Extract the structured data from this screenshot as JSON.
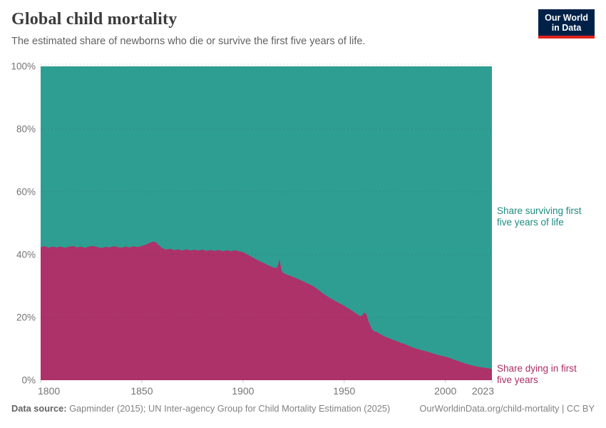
{
  "header": {
    "title": "Global child mortality",
    "subtitle": "The estimated share of newborns who die or survive the first five years of life.",
    "logo": {
      "line1": "Our World",
      "line2": "in Data",
      "bg_color": "#002147",
      "bar_color": "#e0231c"
    }
  },
  "chart_data": {
    "type": "area",
    "stacked": true,
    "title": "Global child mortality",
    "subtitle": "The estimated share of newborns who die or survive the first five years of life.",
    "xlim": [
      1800,
      2023
    ],
    "ylim": [
      0,
      100
    ],
    "grid": true,
    "x_ticks": [
      1800,
      1850,
      1900,
      1950,
      2000,
      2023
    ],
    "y_ticks": [
      0,
      20,
      40,
      60,
      80,
      100
    ],
    "y_tick_suffix": "%",
    "axis_text_color": "#757575",
    "series": [
      {
        "name": "Share surviving first five years of life",
        "label_lines": [
          "Share surviving first",
          "five years of life"
        ],
        "color": "#2f9e92",
        "label_color": "#1e8b80",
        "derived": true,
        "values_rule": "100 minus 'Share dying in first five years' (the two series stack to 100%)"
      },
      {
        "name": "Share dying in first five years",
        "label_lines": [
          "Share dying in first",
          "five years"
        ],
        "color": "#ad3269",
        "label_color": "#ab2d66",
        "points": [
          [
            1800,
            42.4
          ],
          [
            1802,
            42.7
          ],
          [
            1804,
            42.2
          ],
          [
            1806,
            42.6
          ],
          [
            1808,
            42.3
          ],
          [
            1810,
            42.6
          ],
          [
            1812,
            42.2
          ],
          [
            1814,
            42.5
          ],
          [
            1816,
            42.8
          ],
          [
            1818,
            42.3
          ],
          [
            1820,
            42.6
          ],
          [
            1822,
            42.2
          ],
          [
            1824,
            42.6
          ],
          [
            1826,
            42.8
          ],
          [
            1828,
            42.4
          ],
          [
            1830,
            42.1
          ],
          [
            1832,
            42.5
          ],
          [
            1834,
            42.3
          ],
          [
            1836,
            42.7
          ],
          [
            1838,
            42.4
          ],
          [
            1840,
            42.2
          ],
          [
            1842,
            42.6
          ],
          [
            1844,
            42.3
          ],
          [
            1846,
            42.7
          ],
          [
            1848,
            42.4
          ],
          [
            1850,
            42.8
          ],
          [
            1852,
            43.2
          ],
          [
            1854,
            43.8
          ],
          [
            1856,
            44.2
          ],
          [
            1857,
            43.9
          ],
          [
            1858,
            43.3
          ],
          [
            1860,
            42.1
          ],
          [
            1862,
            41.6
          ],
          [
            1864,
            41.9
          ],
          [
            1866,
            41.4
          ],
          [
            1868,
            41.7
          ],
          [
            1870,
            41.3
          ],
          [
            1872,
            41.7
          ],
          [
            1874,
            41.3
          ],
          [
            1876,
            41.6
          ],
          [
            1878,
            41.3
          ],
          [
            1880,
            41.6
          ],
          [
            1882,
            41.2
          ],
          [
            1884,
            41.5
          ],
          [
            1886,
            41.2
          ],
          [
            1888,
            41.5
          ],
          [
            1890,
            41.1
          ],
          [
            1892,
            41.4
          ],
          [
            1894,
            41.1
          ],
          [
            1896,
            41.4
          ],
          [
            1898,
            41.1
          ],
          [
            1900,
            40.8
          ],
          [
            1902,
            40.1
          ],
          [
            1904,
            39.4
          ],
          [
            1906,
            38.7
          ],
          [
            1908,
            38.0
          ],
          [
            1910,
            37.4
          ],
          [
            1912,
            36.8
          ],
          [
            1914,
            36.2
          ],
          [
            1916,
            35.7
          ],
          [
            1917,
            36.0
          ],
          [
            1918,
            38.6
          ],
          [
            1919,
            34.9
          ],
          [
            1920,
            34.1
          ],
          [
            1922,
            33.6
          ],
          [
            1924,
            33.1
          ],
          [
            1926,
            32.6
          ],
          [
            1928,
            32.0
          ],
          [
            1930,
            31.4
          ],
          [
            1932,
            30.8
          ],
          [
            1934,
            30.2
          ],
          [
            1936,
            29.4
          ],
          [
            1938,
            28.4
          ],
          [
            1940,
            27.4
          ],
          [
            1942,
            26.6
          ],
          [
            1944,
            25.8
          ],
          [
            1946,
            25.1
          ],
          [
            1948,
            24.4
          ],
          [
            1950,
            23.7
          ],
          [
            1952,
            22.9
          ],
          [
            1954,
            22.1
          ],
          [
            1956,
            21.2
          ],
          [
            1958,
            20.4
          ],
          [
            1959,
            20.7
          ],
          [
            1960,
            21.6
          ],
          [
            1961,
            20.9
          ],
          [
            1962,
            18.8
          ],
          [
            1963,
            17.2
          ],
          [
            1964,
            16.0
          ],
          [
            1965,
            15.5
          ],
          [
            1966,
            15.4
          ],
          [
            1967,
            15.0
          ],
          [
            1968,
            14.6
          ],
          [
            1970,
            13.9
          ],
          [
            1972,
            13.4
          ],
          [
            1974,
            12.9
          ],
          [
            1976,
            12.4
          ],
          [
            1978,
            11.9
          ],
          [
            1980,
            11.5
          ],
          [
            1982,
            10.9
          ],
          [
            1984,
            10.4
          ],
          [
            1986,
            10.0
          ],
          [
            1988,
            9.6
          ],
          [
            1990,
            9.3
          ],
          [
            1992,
            8.9
          ],
          [
            1994,
            8.5
          ],
          [
            1996,
            8.1
          ],
          [
            1998,
            7.8
          ],
          [
            2000,
            7.5
          ],
          [
            2002,
            7.1
          ],
          [
            2004,
            6.6
          ],
          [
            2006,
            6.2
          ],
          [
            2008,
            5.7
          ],
          [
            2010,
            5.3
          ],
          [
            2012,
            4.9
          ],
          [
            2014,
            4.6
          ],
          [
            2016,
            4.3
          ],
          [
            2018,
            4.1
          ],
          [
            2020,
            3.9
          ],
          [
            2022,
            3.7
          ],
          [
            2023,
            3.6
          ]
        ]
      }
    ]
  },
  "footer": {
    "source_label": "Data source:",
    "source_text": " Gapminder (2015); UN Inter-agency Group for Child Mortality Estimation (2025)",
    "link_text": "OurWorldinData.org/child-mortality | CC BY"
  }
}
